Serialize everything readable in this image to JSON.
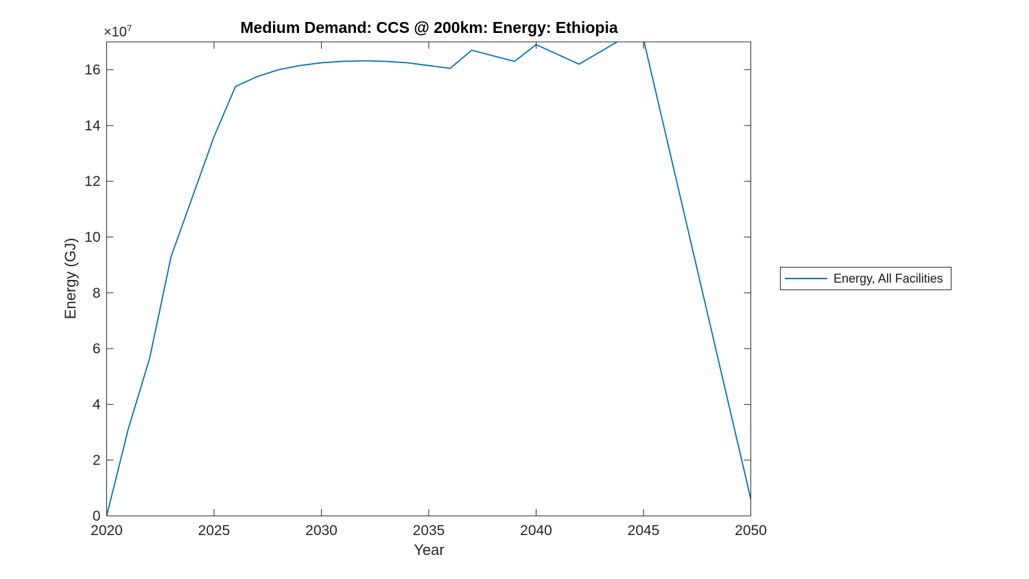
{
  "chart_data": {
    "type": "line",
    "title": "Medium Demand: CCS @ 200km: Energy: Ethiopia",
    "xlabel": "Year",
    "ylabel": "Energy (GJ)",
    "y_axis_offset": {
      "base": "×10",
      "exponent": "7"
    },
    "values_unit": "1e7 GJ",
    "unit_scale": 10000000,
    "xlim": [
      2020,
      2050
    ],
    "ylim": [
      0,
      17
    ],
    "x_ticks": [
      2020,
      2025,
      2030,
      2035,
      2040,
      2045,
      2050
    ],
    "y_ticks": [
      0,
      2,
      4,
      6,
      8,
      10,
      12,
      14,
      16
    ],
    "grid": false,
    "box": true,
    "tick_direction": "in",
    "line_color": "#0072BD",
    "axis_color": "#262626",
    "x": [
      2020,
      2021,
      2022,
      2023,
      2024,
      2025,
      2026,
      2027,
      2028,
      2029,
      2030,
      2031,
      2032,
      2033,
      2034,
      2035,
      2036,
      2037,
      2038,
      2039,
      2040,
      2041,
      2042,
      2043,
      2044,
      2045,
      2046,
      2047,
      2048,
      2049,
      2050
    ],
    "values": [
      0,
      3.1,
      5.65,
      9.3,
      11.45,
      13.6,
      15.4,
      15.75,
      16.0,
      16.15,
      16.25,
      16.3,
      16.32,
      16.3,
      16.25,
      16.15,
      16.05,
      16.7,
      16.5,
      16.3,
      16.9,
      16.55,
      16.2,
      16.65,
      17.1,
      17.1,
      13.8,
      10.5,
      7.2,
      3.9,
      0.6
    ],
    "legend": {
      "entries": [
        "Energy, All Facilities"
      ],
      "position": "right-outside"
    }
  }
}
